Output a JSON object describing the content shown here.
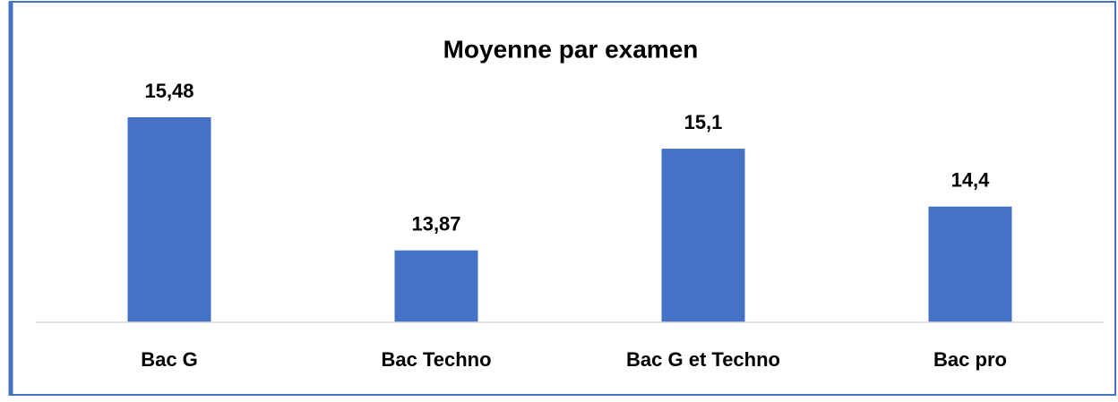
{
  "chart_data": {
    "type": "bar",
    "title": "Moyenne par examen",
    "categories": [
      "Bac G",
      "Bac Techno",
      "Bac G et Techno",
      "Bac pro"
    ],
    "values": [
      15.48,
      13.87,
      15.1,
      14.4
    ],
    "value_labels": [
      "15,48",
      "13,87",
      "15,1",
      "14,4"
    ],
    "color": "#4472c4",
    "ylim": [
      13,
      16
    ]
  }
}
